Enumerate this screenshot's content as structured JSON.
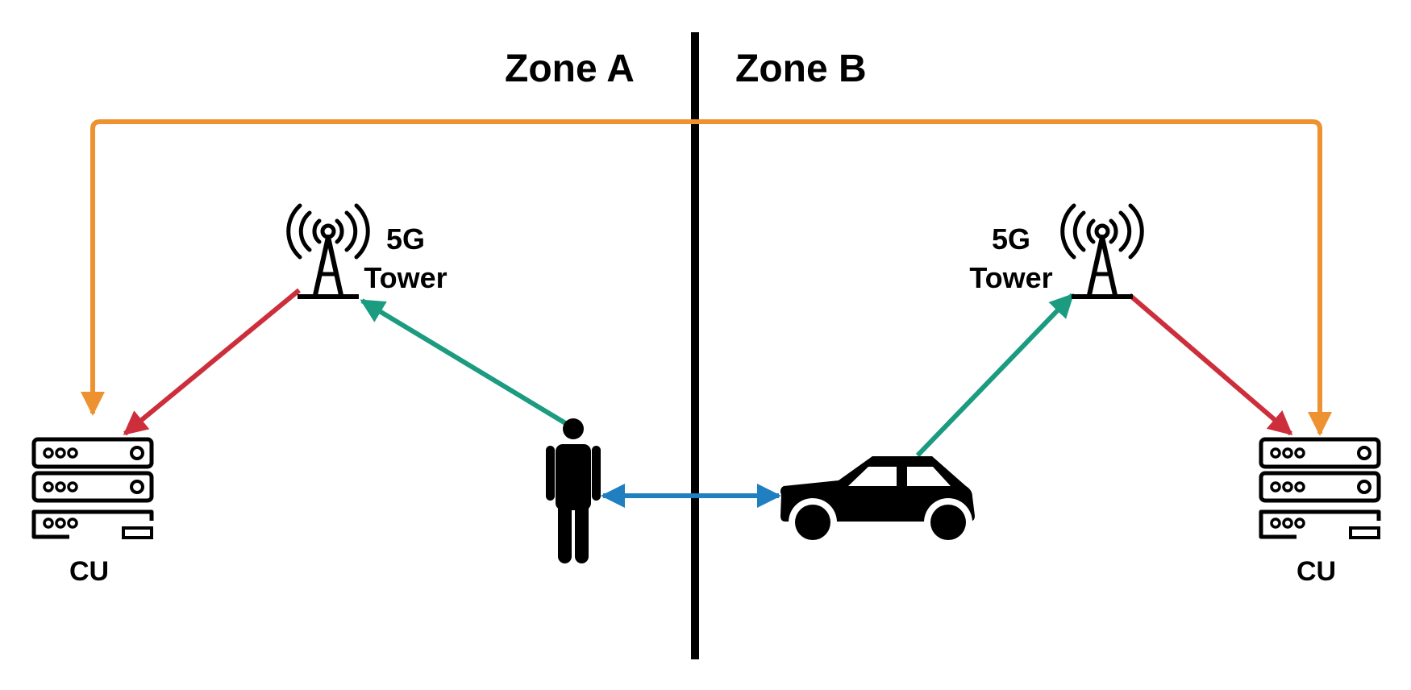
{
  "zones": {
    "a": "Zone A",
    "b": "Zone B"
  },
  "towers": {
    "left": {
      "line1": "5G",
      "line2": "Tower"
    },
    "right": {
      "line1": "5G",
      "line2": "Tower"
    }
  },
  "cu": {
    "left": "CU",
    "right": "CU"
  },
  "icons": [
    "antenna-tower-icon",
    "server-rack-icon",
    "person-icon",
    "car-icon"
  ],
  "colors": {
    "backhaul": "#ee9130",
    "fronthaul": "#cc2f3b",
    "uplink": "#1b9b7f",
    "sidelink": "#1f7fc0",
    "ink": "#000000"
  }
}
